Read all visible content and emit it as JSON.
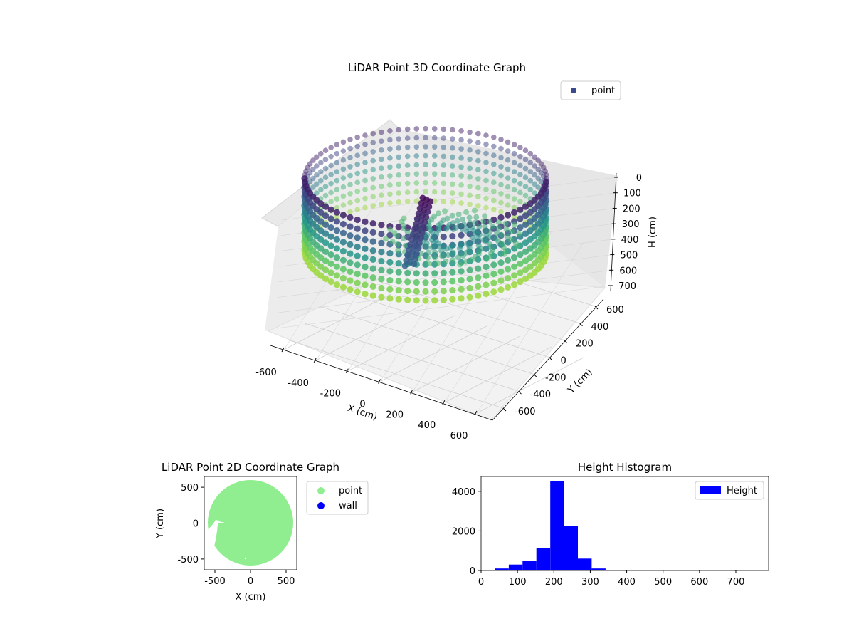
{
  "chart_data": [
    {
      "type": "scatter",
      "projection": "3d",
      "title": "LiDAR Point 3D Coordinate Graph",
      "xlabel": "X (cm)",
      "ylabel": "Y (cm)",
      "zlabel": "H (cm)",
      "xlim": [
        -650,
        650
      ],
      "ylim": [
        -650,
        650
      ],
      "zlim": [
        750,
        0
      ],
      "xticks": [
        -600,
        -400,
        -200,
        0,
        200,
        400,
        600
      ],
      "yticks": [
        -600,
        -400,
        -200,
        0,
        200,
        400,
        600
      ],
      "zticks": [
        0,
        100,
        200,
        300,
        400,
        500,
        600,
        700
      ],
      "grid": true,
      "legend": {
        "position": "top-right",
        "entries": [
          "point"
        ]
      },
      "colormap": "viridis",
      "legend_marker_color": "#3b4a8c",
      "series": [
        {
          "name": "point",
          "structure": "ring wall of points at radius ~580 cm spanning height ~50–450 cm, with a vertical object near the centre",
          "wall_radius": 580,
          "wall_height_range": [
            50,
            450
          ]
        }
      ]
    },
    {
      "type": "scatter",
      "title": "LiDAR Point 2D Coordinate Graph",
      "xlabel": "X (cm)",
      "ylabel": "Y (cm)",
      "xlim": [
        -650,
        650
      ],
      "ylim": [
        -650,
        650
      ],
      "xticks": [
        -500,
        0,
        500
      ],
      "yticks": [
        -500,
        0,
        500
      ],
      "legend": {
        "position": "outside-right",
        "entries": [
          "point",
          "wall"
        ]
      },
      "series": [
        {
          "name": "point",
          "color": "#90ee90",
          "shape": "filled disc",
          "radius": 600
        },
        {
          "name": "wall",
          "color": "#0000ff",
          "count": 0
        }
      ]
    },
    {
      "type": "bar",
      "subtype": "histogram",
      "title": "Height Histogram",
      "xlabel": "",
      "ylabel": "",
      "xlim": [
        0,
        790
      ],
      "ylim": [
        0,
        4750
      ],
      "xticks": [
        0,
        100,
        200,
        300,
        400,
        500,
        600,
        700
      ],
      "yticks": [
        0,
        2000,
        4000
      ],
      "color": "#0000ff",
      "legend": {
        "position": "top-right",
        "entries": [
          "Height"
        ]
      },
      "bins": [
        {
          "x0": 0,
          "x1": 38,
          "count": 30
        },
        {
          "x0": 38,
          "x1": 76,
          "count": 100
        },
        {
          "x0": 76,
          "x1": 114,
          "count": 300
        },
        {
          "x0": 114,
          "x1": 152,
          "count": 500
        },
        {
          "x0": 152,
          "x1": 190,
          "count": 1150
        },
        {
          "x0": 190,
          "x1": 228,
          "count": 4500
        },
        {
          "x0": 228,
          "x1": 266,
          "count": 2250
        },
        {
          "x0": 266,
          "x1": 304,
          "count": 600
        },
        {
          "x0": 304,
          "x1": 342,
          "count": 100
        },
        {
          "x0": 342,
          "x1": 380,
          "count": 20
        },
        {
          "x0": 380,
          "x1": 418,
          "count": 5
        },
        {
          "x0": 418,
          "x1": 456,
          "count": 5
        },
        {
          "x0": 456,
          "x1": 494,
          "count": 3
        },
        {
          "x0": 494,
          "x1": 532,
          "count": 3
        },
        {
          "x0": 532,
          "x1": 570,
          "count": 3
        },
        {
          "x0": 570,
          "x1": 608,
          "count": 3
        },
        {
          "x0": 608,
          "x1": 646,
          "count": 3
        },
        {
          "x0": 646,
          "x1": 684,
          "count": 3
        },
        {
          "x0": 684,
          "x1": 722,
          "count": 3
        },
        {
          "x0": 722,
          "x1": 760,
          "count": 3
        }
      ]
    }
  ]
}
